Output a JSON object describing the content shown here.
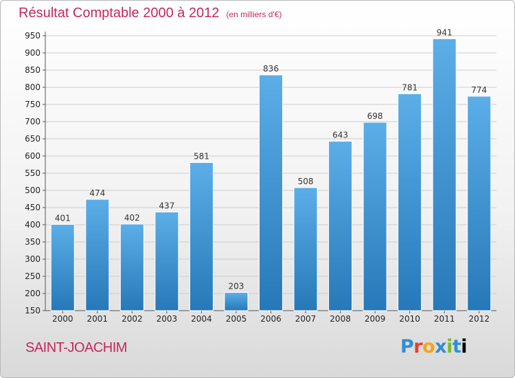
{
  "header": {
    "title": "Résultat Comptable 2000 à 2012",
    "subtitle": "(en milliers d'€)"
  },
  "footer": {
    "city": "SAINT-JOACHIM",
    "brand": "Proxiti"
  },
  "colors": {
    "title": "#c4285a",
    "bar_top": "#5caee8",
    "bar_bottom": "#2678b8",
    "grid": "#cccccc"
  },
  "chart_data": {
    "type": "bar",
    "title": "Résultat Comptable 2000 à 2012",
    "subtitle": "(en milliers d'€)",
    "categories": [
      "2000",
      "2001",
      "2002",
      "2003",
      "2004",
      "2005",
      "2006",
      "2007",
      "2008",
      "2009",
      "2010",
      "2011",
      "2012"
    ],
    "values": [
      401,
      474,
      402,
      437,
      581,
      203,
      836,
      508,
      643,
      698,
      781,
      941,
      774
    ],
    "ylim": [
      150,
      950
    ],
    "yticks": [
      150,
      200,
      250,
      300,
      350,
      400,
      450,
      500,
      550,
      600,
      650,
      700,
      750,
      800,
      850,
      900,
      950
    ],
    "grid": true,
    "legend": "none",
    "data_labels": true
  }
}
